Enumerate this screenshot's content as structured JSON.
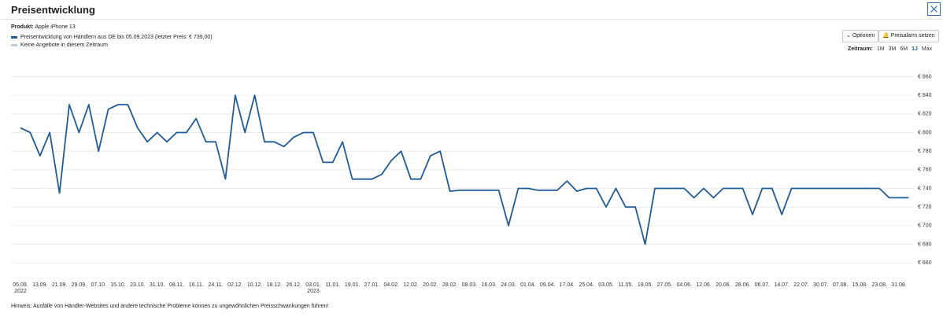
{
  "header": {
    "title": "Preisentwicklung"
  },
  "product": {
    "label": "Produkt:",
    "name": "Apple iPhone 13"
  },
  "controls": {
    "options": "Optionen",
    "alarm": "Preisalarm setzen",
    "range_label": "Zeitraum:",
    "ranges": [
      "1M",
      "3M",
      "6M",
      "1J",
      "Max"
    ],
    "active_range": 3
  },
  "note": "Hinweis: Ausfälle von Händler-Websites und andere technische Probleme können zu ungewöhnlichen Preisschwankungen führen!",
  "chart_data": {
    "type": "line",
    "categories": [
      "05.09.",
      null,
      "13.09.",
      null,
      "21.09.",
      null,
      "29.09.",
      null,
      "07.10.",
      null,
      "15.10.",
      null,
      "23.10.",
      null,
      "31.10.",
      null,
      "08.11.",
      null,
      "16.11.",
      null,
      "24.11.",
      null,
      "02.12.",
      null,
      "10.12.",
      null,
      "18.12.",
      null,
      "26.12.",
      null,
      "03.01.",
      null,
      "11.01.",
      null,
      "19.01.",
      null,
      "27.01.",
      null,
      "04.02.",
      null,
      "12.02.",
      null,
      "20.02.",
      null,
      "28.02.",
      null,
      "08.03.",
      null,
      "16.03.",
      null,
      "24.03.",
      null,
      "01.04.",
      null,
      "09.04.",
      null,
      "17.04.",
      null,
      "25.04.",
      null,
      "03.05.",
      null,
      "11.05.",
      null,
      "19.05.",
      null,
      "27.05.",
      null,
      "04.06.",
      null,
      "12.06.",
      null,
      "20.06.",
      null,
      "28.06.",
      null,
      "06.07.",
      null,
      "14.07.",
      null,
      "22.07.",
      null,
      "30.07.",
      null,
      "07.08.",
      null,
      "15.08.",
      null,
      "23.08.",
      null,
      "31.08.",
      null
    ],
    "category_sublabels": [
      "2022",
      null,
      null,
      null,
      null,
      null,
      null,
      null,
      null,
      null,
      null,
      null,
      null,
      null,
      null,
      null,
      null,
      null,
      null,
      null,
      null,
      null,
      null,
      null,
      null,
      null,
      null,
      null,
      null,
      null,
      "2023",
      null,
      null,
      null,
      null,
      null,
      null,
      null,
      null,
      null,
      null,
      null,
      null,
      null,
      null,
      null,
      null,
      null,
      null,
      null,
      null,
      null,
      null,
      null,
      null,
      null,
      null,
      null,
      null,
      null,
      null,
      null,
      null,
      null,
      null,
      null,
      null,
      null,
      null,
      null,
      null,
      null,
      null,
      null,
      null,
      null,
      null,
      null,
      null,
      null,
      null,
      null,
      null,
      null,
      null,
      null,
      null,
      null,
      null,
      null,
      null,
      null
    ],
    "series": [
      {
        "name": "Preisentwicklung von Händlern aus DE bis 05.09.2023 (letzter Preis: € 739,00)",
        "color": "#1f5b98",
        "values": [
          805,
          800,
          775,
          800,
          735,
          830,
          800,
          830,
          780,
          825,
          830,
          830,
          805,
          790,
          800,
          790,
          800,
          800,
          815,
          790,
          790,
          750,
          840,
          800,
          840,
          790,
          790,
          785,
          795,
          800,
          800,
          768,
          768,
          790,
          750,
          750,
          750,
          755,
          770,
          780,
          750,
          750,
          775,
          780,
          737,
          738,
          738,
          738,
          738,
          738,
          700,
          740,
          740,
          738,
          738,
          738,
          748,
          737,
          740,
          740,
          720,
          740,
          720,
          720,
          680,
          740,
          740,
          740,
          740,
          730,
          740,
          730,
          740,
          740,
          740,
          712,
          740,
          740,
          712,
          740,
          740,
          740,
          740,
          740,
          740,
          740,
          740,
          740,
          740,
          730,
          730,
          730
        ]
      }
    ],
    "no_data_legend": {
      "name": "Keine Angebote in diesem Zeitraum",
      "color": "#c5cbd2"
    },
    "ylim": [
      645,
      868
    ],
    "yticks": [
      {
        "value": 660,
        "label": "€ 660"
      },
      {
        "value": 680,
        "label": "€ 680"
      },
      {
        "value": 700,
        "label": "€ 700"
      },
      {
        "value": 720,
        "label": "€ 720"
      },
      {
        "value": 740,
        "label": "€ 740"
      },
      {
        "value": 760,
        "label": "€ 760"
      },
      {
        "value": 780,
        "label": "€ 780"
      },
      {
        "value": 800,
        "label": "€ 800"
      },
      {
        "value": 820,
        "label": "€ 820"
      },
      {
        "value": 840,
        "label": "€ 840"
      },
      {
        "value": 860,
        "label": "€ 860"
      }
    ],
    "grid": true
  }
}
